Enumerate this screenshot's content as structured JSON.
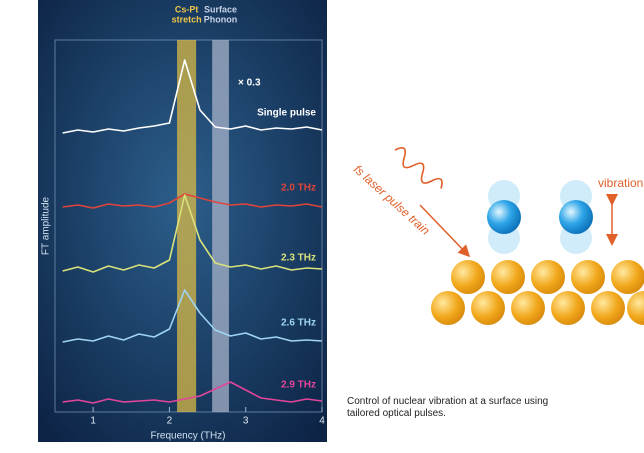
{
  "chart_data": {
    "type": "line",
    "y_label": "FT amplitude",
    "x_label": "Frequency (THz)",
    "xlim": [
      0.5,
      4
    ],
    "xticks": [
      1,
      2,
      3,
      4
    ],
    "ylim": [
      0,
      10
    ],
    "bands": [
      {
        "label": [
          "Cs-Pt",
          "stretch"
        ],
        "range": [
          2.1,
          2.35
        ],
        "color": "#d9b945"
      },
      {
        "label": [
          "Surface",
          "Phonon"
        ],
        "range": [
          2.56,
          2.78
        ],
        "color": "#a7b1c8"
      }
    ],
    "x": [
      0.6,
      0.8,
      1.0,
      1.2,
      1.4,
      1.6,
      1.8,
      2.0,
      2.2,
      2.4,
      2.6,
      2.8,
      3.0,
      3.2,
      3.4,
      3.6,
      3.8,
      4.0
    ],
    "series": [
      {
        "name": "Single pulse",
        "note": "× 0.3",
        "color": "#ffffff",
        "values": [
          0.2,
          0.5,
          0.3,
          0.6,
          0.4,
          0.7,
          0.9,
          1.2,
          7.5,
          2.5,
          0.8,
          0.6,
          0.9,
          0.5,
          0.7,
          0.6,
          0.8,
          0.5
        ]
      },
      {
        "name": "2.0 THz",
        "color": "#e0443a",
        "values": [
          0.3,
          0.5,
          0.2,
          0.6,
          0.4,
          0.5,
          0.3,
          0.7,
          1.6,
          1.2,
          0.8,
          0.5,
          0.6,
          0.3,
          0.5,
          0.4,
          0.6,
          0.3
        ]
      },
      {
        "name": "2.3 THz",
        "color": "#d9e27a",
        "values": [
          0.4,
          0.8,
          0.3,
          0.9,
          0.5,
          1.0,
          0.7,
          1.5,
          8.0,
          3.5,
          1.2,
          0.8,
          1.0,
          0.6,
          0.9,
          0.5,
          0.7,
          0.6
        ]
      },
      {
        "name": "2.6 THz",
        "color": "#9fd4f2",
        "values": [
          0.3,
          0.6,
          0.4,
          0.9,
          0.5,
          1.1,
          0.8,
          1.6,
          5.5,
          3.2,
          1.5,
          0.9,
          1.2,
          0.6,
          0.8,
          0.4,
          0.5,
          0.4
        ]
      },
      {
        "name": "2.9 THz",
        "color": "#e2459a",
        "values": [
          0.3,
          0.5,
          0.2,
          0.6,
          0.3,
          0.4,
          0.5,
          0.3,
          0.6,
          0.9,
          1.6,
          2.3,
          1.5,
          0.7,
          0.5,
          0.3,
          0.6,
          0.4
        ]
      }
    ]
  },
  "diagram": {
    "laser_label": "fs laser pulse train",
    "vibration_label": "vibration"
  },
  "caption": "Control of nuclear vibration at a surface using tailored optical pulses."
}
